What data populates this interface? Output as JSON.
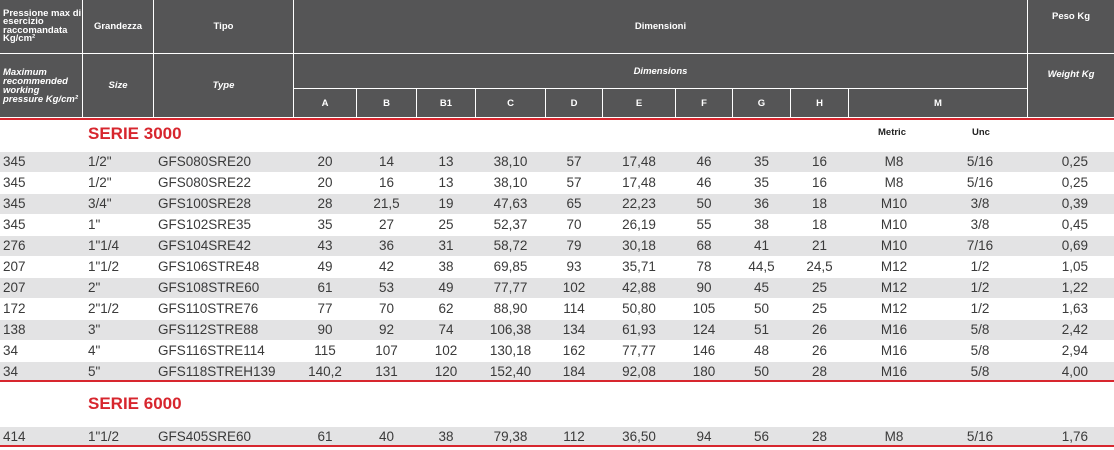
{
  "header": {
    "pressure_it": "Pressione max di esercizio raccomandata Kg/cm²",
    "size_it": "Grandezza",
    "type_it": "Tipo",
    "dims_it": "Dimensioni",
    "weight_it": "Peso Kg",
    "pressure_en": "Maximum recommended working pressure Kg/cm²",
    "size_en": "Size",
    "type_en": "Type",
    "dims_en": "Dimensions",
    "weight_en": "Weight Kg",
    "dim_columns": [
      "A",
      "B",
      "B1",
      "C",
      "D",
      "E",
      "F",
      "G",
      "H",
      "M"
    ]
  },
  "series": [
    {
      "title": "SERIE 3000",
      "sub_metric": "Metric",
      "sub_unc": "Unc",
      "rows": [
        [
          "345",
          "1/2\"",
          "GFS080SRE20",
          "20",
          "14",
          "13",
          "38,10",
          "57",
          "17,48",
          "46",
          "35",
          "16",
          "M8",
          "5/16",
          "0,25"
        ],
        [
          "345",
          "1/2\"",
          "GFS080SRE22",
          "20",
          "16",
          "13",
          "38,10",
          "57",
          "17,48",
          "46",
          "35",
          "16",
          "M8",
          "5/16",
          "0,25"
        ],
        [
          "345",
          "3/4\"",
          "GFS100SRE28",
          "28",
          "21,5",
          "19",
          "47,63",
          "65",
          "22,23",
          "50",
          "36",
          "18",
          "M10",
          "3/8",
          "0,39"
        ],
        [
          "345",
          "1\"",
          "GFS102SRE35",
          "35",
          "27",
          "25",
          "52,37",
          "70",
          "26,19",
          "55",
          "38",
          "18",
          "M10",
          "3/8",
          "0,45"
        ],
        [
          "276",
          "1\"1/4",
          "GFS104SRE42",
          "43",
          "36",
          "31",
          "58,72",
          "79",
          "30,18",
          "68",
          "41",
          "21",
          "M10",
          "7/16",
          "0,69"
        ],
        [
          "207",
          "1\"1/2",
          "GFS106STRE48",
          "49",
          "42",
          "38",
          "69,85",
          "93",
          "35,71",
          "78",
          "44,5",
          "24,5",
          "M12",
          "1/2",
          "1,05"
        ],
        [
          "207",
          "2\"",
          "GFS108STRE60",
          "61",
          "53",
          "49",
          "77,77",
          "102",
          "42,88",
          "90",
          "45",
          "25",
          "M12",
          "1/2",
          "1,22"
        ],
        [
          "172",
          "2\"1/2",
          "GFS110STRE76",
          "77",
          "70",
          "62",
          "88,90",
          "114",
          "50,80",
          "105",
          "50",
          "25",
          "M12",
          "1/2",
          "1,63"
        ],
        [
          "138",
          "3\"",
          "GFS112STRE88",
          "90",
          "92",
          "74",
          "106,38",
          "134",
          "61,93",
          "124",
          "51",
          "26",
          "M16",
          "5/8",
          "2,42"
        ],
        [
          "34",
          "4\"",
          "GFS116STRE114",
          "115",
          "107",
          "102",
          "130,18",
          "162",
          "77,77",
          "146",
          "48",
          "26",
          "M16",
          "5/8",
          "2,94"
        ],
        [
          "34",
          "5\"",
          "GFS118STREH139",
          "140,2",
          "131",
          "120",
          "152,40",
          "184",
          "92,08",
          "180",
          "50",
          "28",
          "M16",
          "5/8",
          "4,00"
        ]
      ]
    },
    {
      "title": "SERIE 6000",
      "rows": [
        [
          "414",
          "1\"1/2",
          "GFS405SRE60",
          "61",
          "40",
          "38",
          "79,38",
          "112",
          "36,50",
          "94",
          "56",
          "28",
          "M8",
          "5/16",
          "1,76"
        ]
      ]
    }
  ]
}
